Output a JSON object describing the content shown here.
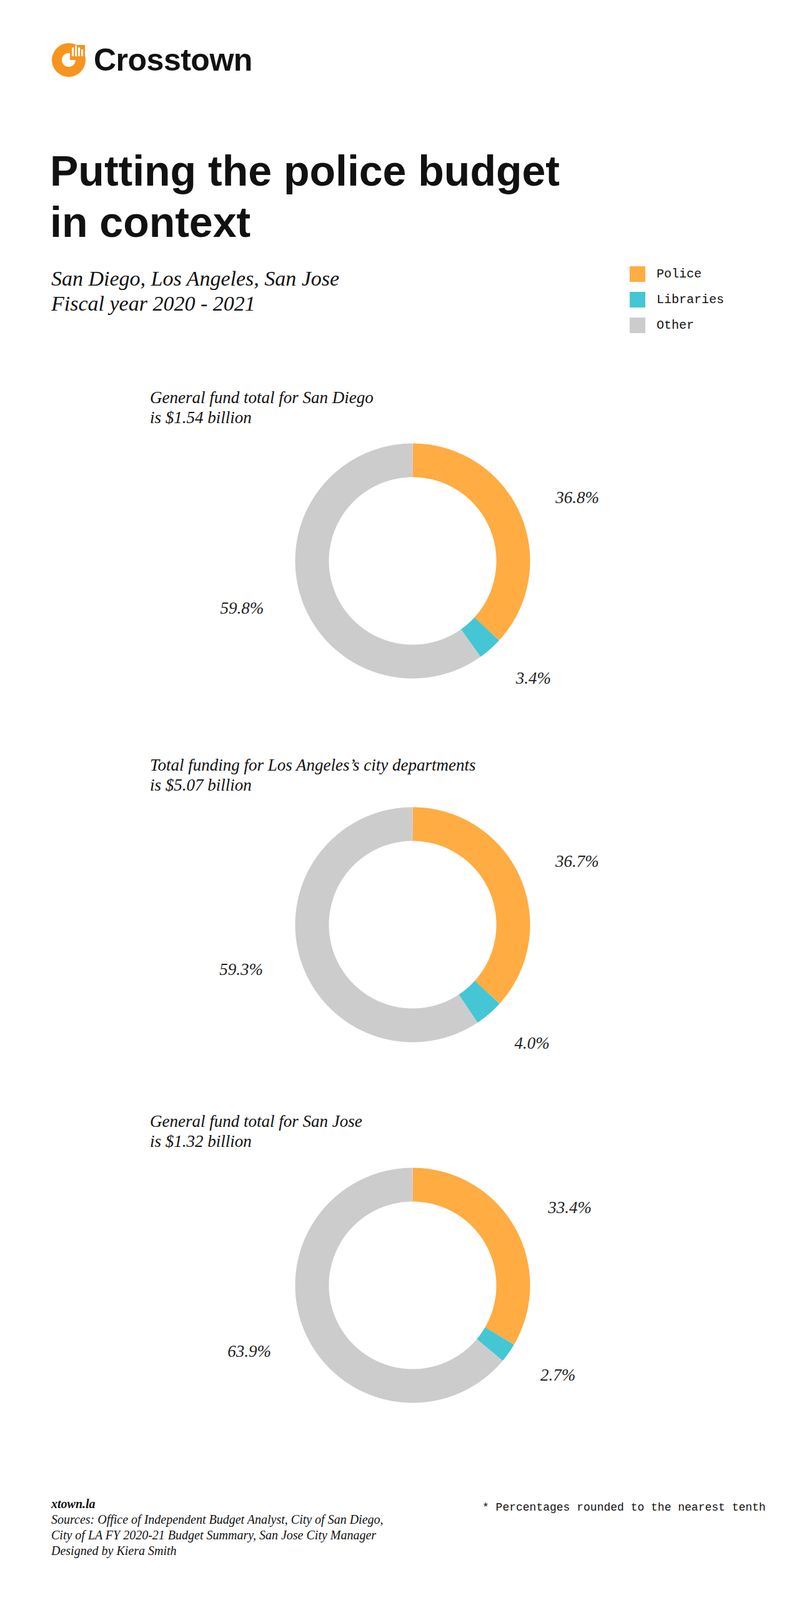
{
  "header": {
    "logo": "Crosstown",
    "title": [
      "Putting the police budget",
      "in context"
    ],
    "subtitle": [
      "San Diego, Los Angeles, San Jose",
      "Fiscal year 2020 - 2021"
    ]
  },
  "chart_data": [
    {
      "type": "pie",
      "title": [
        "General fund total for San Diego",
        "is $1.54 billion"
      ],
      "categories": [
        "Police",
        "Libraries",
        "Other"
      ],
      "values": [
        36.8,
        3.4,
        59.8
      ],
      "value_labels": [
        "36.8%",
        "3.4%",
        "59.8%"
      ],
      "colors": [
        "#ffac42",
        "#45c6d4",
        "#cccccc"
      ],
      "data_labels": true
    },
    {
      "type": "pie",
      "title": [
        "Total funding for Los Angeles’s city departments",
        "is $5.07 billion"
      ],
      "categories": [
        "Police",
        "Libraries",
        "Other"
      ],
      "values": [
        36.7,
        4.0,
        59.3
      ],
      "value_labels": [
        "36.7%",
        "4.0%",
        "59.3%"
      ],
      "colors": [
        "#ffac42",
        "#45c6d4",
        "#cccccc"
      ],
      "data_labels": true
    },
    {
      "type": "pie",
      "title": [
        "General fund total for San Jose",
        "is $1.32 billion"
      ],
      "categories": [
        "Police",
        "Libraries",
        "Other"
      ],
      "values": [
        33.4,
        2.7,
        63.9
      ],
      "value_labels": [
        "33.4%",
        "2.7%",
        "63.9%"
      ],
      "colors": [
        "#ffac42",
        "#45c6d4",
        "#cccccc"
      ],
      "data_labels": true
    }
  ],
  "footer": {
    "site": "xtown.la",
    "sources": [
      "Sources: Office of Independent Budget Analyst, City of San Diego,",
      "City of LA FY 2020-21 Budget Summary, San Jose City Manager"
    ],
    "credit": "Designed by Kiera Smith",
    "note": "* Percentages rounded to the nearest tenth"
  }
}
